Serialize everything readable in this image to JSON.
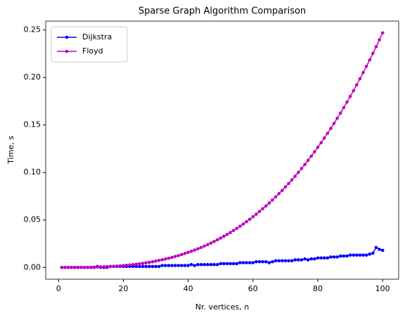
{
  "chart_data": {
    "type": "line",
    "title": "Sparse Graph Algorithm Comparison",
    "xlabel": "Nr. vertices, n",
    "ylabel": "Time, s",
    "x": [
      1,
      2,
      3,
      4,
      5,
      6,
      7,
      8,
      9,
      10,
      11,
      12,
      13,
      14,
      15,
      16,
      17,
      18,
      19,
      20,
      21,
      22,
      23,
      24,
      25,
      26,
      27,
      28,
      29,
      30,
      31,
      32,
      33,
      34,
      35,
      36,
      37,
      38,
      39,
      40,
      41,
      42,
      43,
      44,
      45,
      46,
      47,
      48,
      49,
      50,
      51,
      52,
      53,
      54,
      55,
      56,
      57,
      58,
      59,
      60,
      61,
      62,
      63,
      64,
      65,
      66,
      67,
      68,
      69,
      70,
      71,
      72,
      73,
      74,
      75,
      76,
      77,
      78,
      79,
      80,
      81,
      82,
      83,
      84,
      85,
      86,
      87,
      88,
      89,
      90,
      91,
      92,
      93,
      94,
      95,
      96,
      97,
      98,
      99,
      100
    ],
    "series": [
      {
        "name": "Dijkstra",
        "color": "#0000ff",
        "values": [
          0.0,
          0.0,
          0.0,
          0.0,
          0.0,
          0.0,
          0.0,
          0.0,
          0.0,
          0.0,
          0.0,
          0.001,
          0.0,
          0.0,
          0.0,
          0.001,
          0.001,
          0.001,
          0.001,
          0.001,
          0.001,
          0.001,
          0.001,
          0.001,
          0.001,
          0.001,
          0.001,
          0.001,
          0.001,
          0.001,
          0.001,
          0.002,
          0.002,
          0.002,
          0.002,
          0.002,
          0.002,
          0.002,
          0.002,
          0.002,
          0.003,
          0.002,
          0.003,
          0.003,
          0.003,
          0.003,
          0.003,
          0.003,
          0.003,
          0.004,
          0.004,
          0.004,
          0.004,
          0.004,
          0.004,
          0.005,
          0.005,
          0.005,
          0.005,
          0.005,
          0.006,
          0.006,
          0.006,
          0.006,
          0.005,
          0.006,
          0.007,
          0.007,
          0.007,
          0.007,
          0.007,
          0.007,
          0.008,
          0.008,
          0.008,
          0.009,
          0.008,
          0.009,
          0.009,
          0.01,
          0.01,
          0.01,
          0.01,
          0.011,
          0.011,
          0.011,
          0.012,
          0.012,
          0.012,
          0.013,
          0.013,
          0.013,
          0.013,
          0.013,
          0.013,
          0.014,
          0.015,
          0.021,
          0.019,
          0.018
        ]
      },
      {
        "name": "Floyd",
        "color": "#bf00bf",
        "values": [
          0.0,
          0.0,
          0.0,
          0.0,
          0.0,
          0.0001,
          0.0001,
          0.0001,
          0.0002,
          0.0002,
          0.0003,
          0.0004,
          0.0005,
          0.0007,
          0.0008,
          0.001,
          0.0012,
          0.0014,
          0.0017,
          0.002,
          0.0023,
          0.0026,
          0.003,
          0.0034,
          0.0039,
          0.0043,
          0.0049,
          0.0054,
          0.006,
          0.0067,
          0.0074,
          0.0081,
          0.0089,
          0.0097,
          0.0106,
          0.0115,
          0.0125,
          0.0136,
          0.0147,
          0.0158,
          0.017,
          0.0183,
          0.0196,
          0.021,
          0.0225,
          0.024,
          0.0256,
          0.0273,
          0.0291,
          0.0309,
          0.0328,
          0.0347,
          0.0368,
          0.0389,
          0.0411,
          0.0434,
          0.0457,
          0.0482,
          0.0507,
          0.0534,
          0.0561,
          0.0589,
          0.0618,
          0.0647,
          0.0678,
          0.071,
          0.0743,
          0.0777,
          0.0811,
          0.0847,
          0.0884,
          0.0922,
          0.0961,
          0.1001,
          0.1042,
          0.1084,
          0.1128,
          0.1172,
          0.1218,
          0.1265,
          0.1313,
          0.1362,
          0.1412,
          0.1464,
          0.1517,
          0.1571,
          0.1626,
          0.1683,
          0.1741,
          0.1801,
          0.1861,
          0.1923,
          0.1987,
          0.2052,
          0.2118,
          0.2185,
          0.2254,
          0.2325,
          0.2397,
          0.247
        ]
      }
    ],
    "xlim": [
      -3.95,
      104.95
    ],
    "xticks": [
      0,
      20,
      40,
      60,
      80,
      100
    ],
    "ylim": [
      -0.0124,
      0.2594
    ],
    "yticks": [
      {
        "value": 0,
        "label": "0.00"
      },
      {
        "value": 0.05,
        "label": "0.05"
      },
      {
        "value": 0.1,
        "label": "0.10"
      },
      {
        "value": 0.15,
        "label": "0.15"
      },
      {
        "value": 0.2,
        "label": "0.20"
      },
      {
        "value": 0.25,
        "label": "0.25"
      }
    ],
    "grid": false,
    "legend": "upper left"
  }
}
